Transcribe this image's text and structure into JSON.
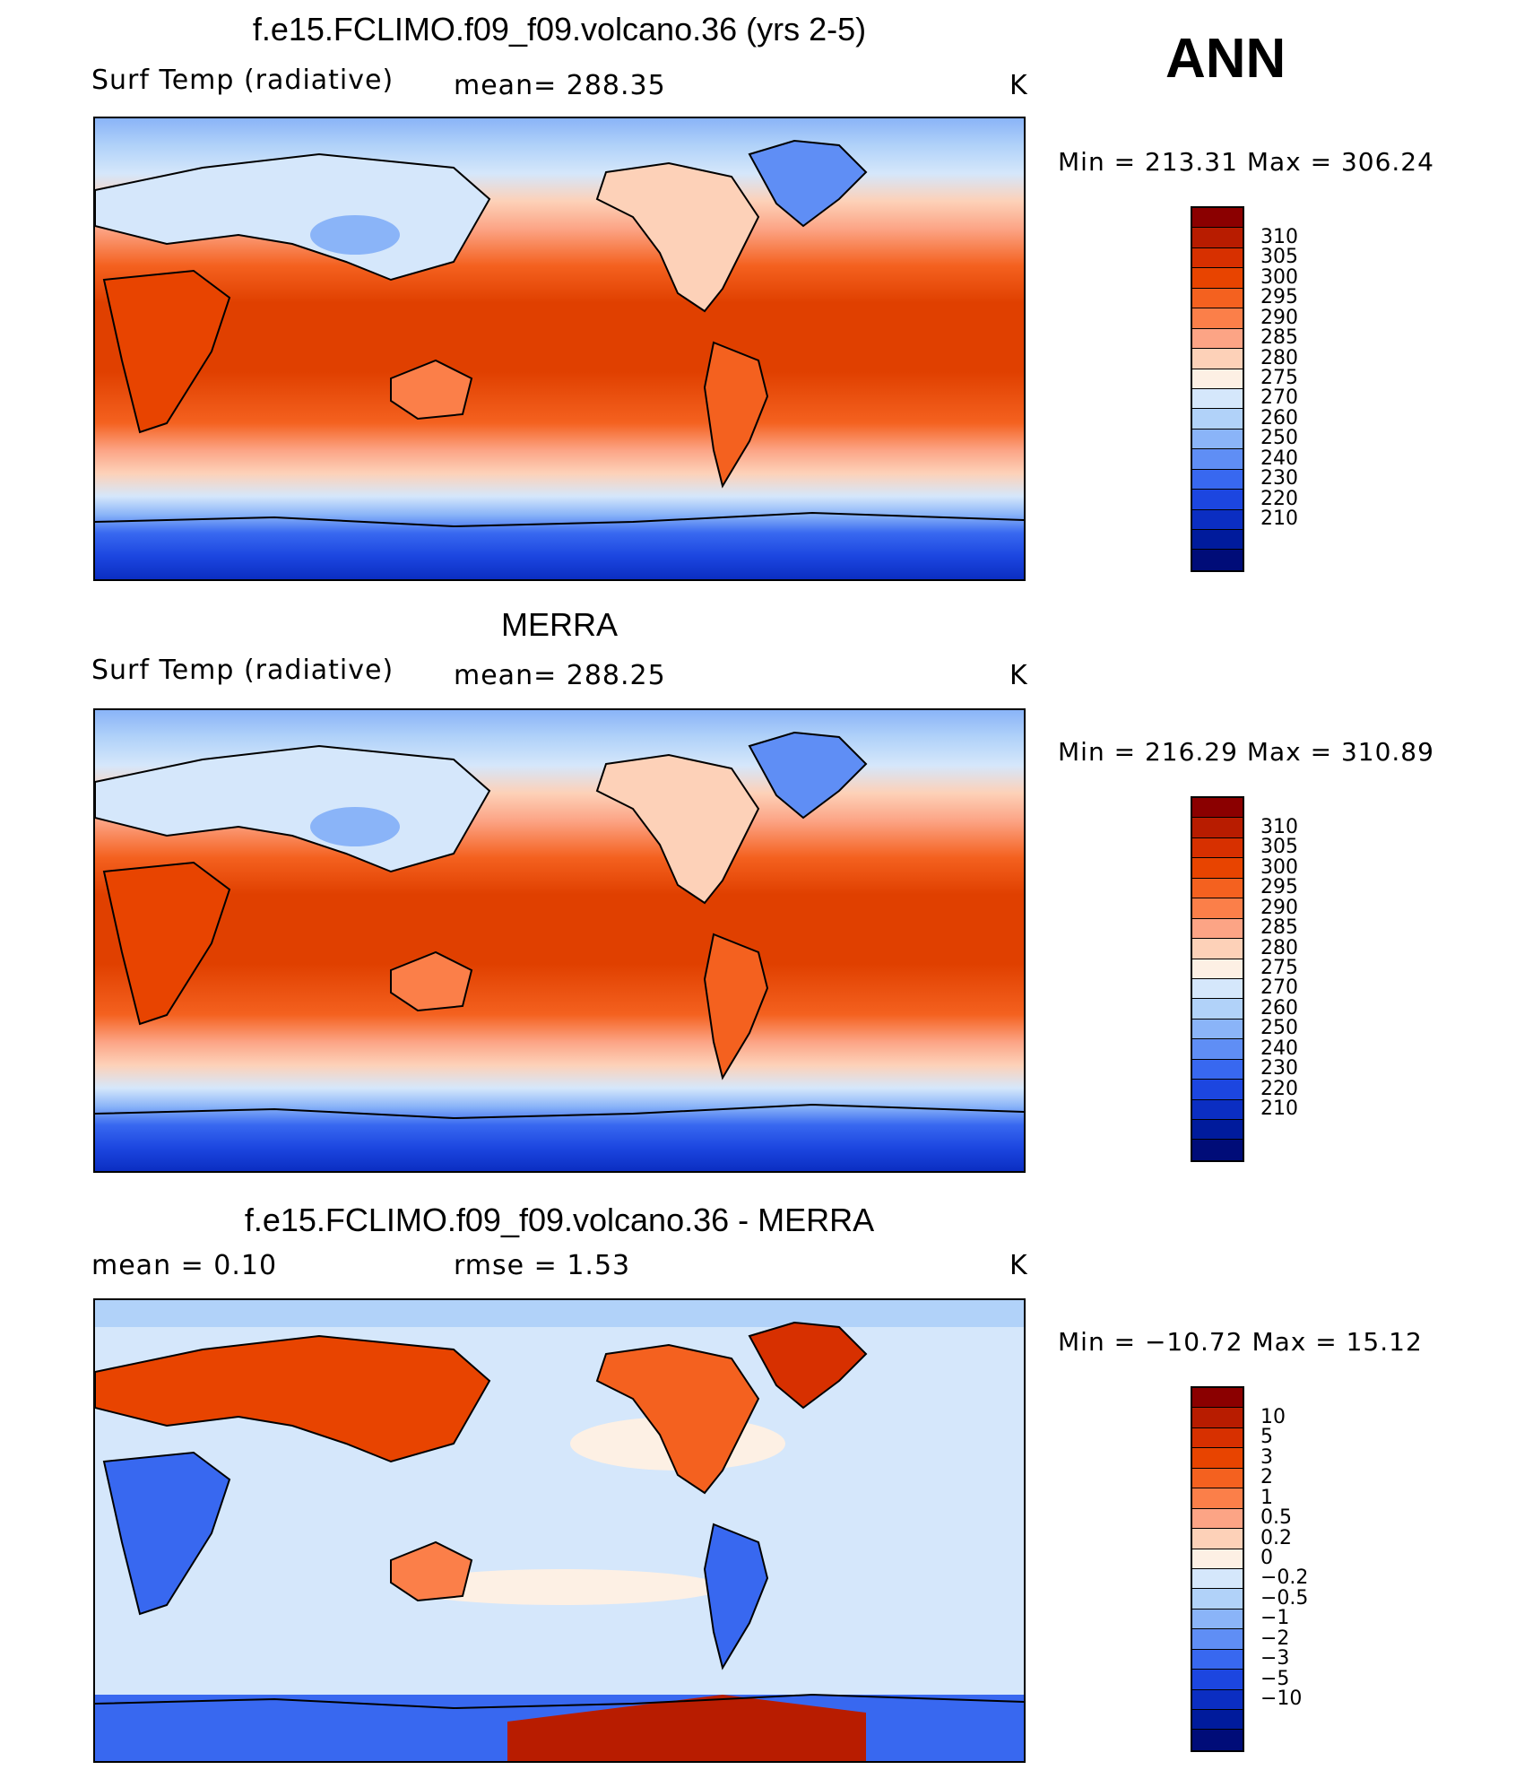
{
  "panels": [
    {
      "title": "f.e15.FCLIMO.f09_f09.volcano.36 (yrs 2-5)",
      "left_text": "Surf Temp (radiative)",
      "mid_text": "mean= 288.35",
      "unit": "K",
      "min_max": "Min = 213.31 Max = 306.24",
      "colorbar_labels": [
        "310",
        "305",
        "300",
        "295",
        "290",
        "285",
        "280",
        "275",
        "270",
        "260",
        "250",
        "240",
        "230",
        "220",
        "210"
      ]
    },
    {
      "title": "MERRA",
      "left_text": "Surf Temp (radiative)",
      "mid_text": "mean= 288.25",
      "unit": "K",
      "min_max": "Min = 216.29 Max = 310.89",
      "colorbar_labels": [
        "310",
        "305",
        "300",
        "295",
        "290",
        "285",
        "280",
        "275",
        "270",
        "260",
        "250",
        "240",
        "230",
        "220",
        "210"
      ]
    },
    {
      "title": "f.e15.FCLIMO.f09_f09.volcano.36 - MERRA",
      "left_text": "mean =     0.10",
      "mid_text": "rmse =     1.53",
      "unit": "K",
      "min_max": "Min = −10.72 Max =   15.12",
      "colorbar_labels": [
        "10",
        "5",
        "3",
        "2",
        "1",
        "0.5",
        "0.2",
        "0",
        "−0.2",
        "−0.5",
        "−1",
        "−2",
        "−3",
        "−5",
        "−10"
      ]
    }
  ],
  "season": "ANN",
  "colorbar_colors": [
    "#8b0000",
    "#b81c00",
    "#d73000",
    "#e84400",
    "#f4611f",
    "#fb7f49",
    "#fca485",
    "#fdd1b8",
    "#fdf0e4",
    "#d5e7fb",
    "#b1d2f9",
    "#8ab4f8",
    "#5f8ef5",
    "#3868f0",
    "#1c46e0",
    "#0b2ec2",
    "#001b9c",
    "#000c78"
  ]
}
